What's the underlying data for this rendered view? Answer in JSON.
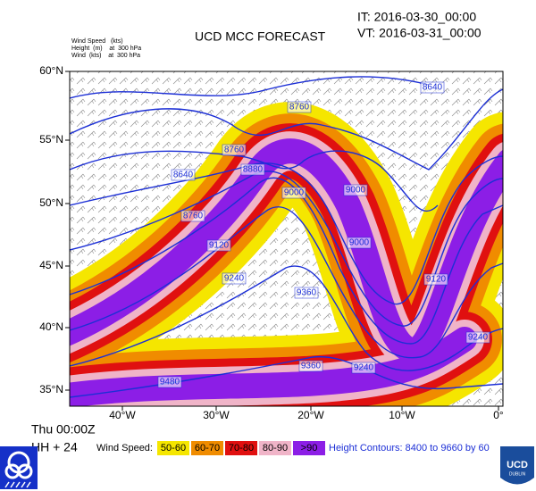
{
  "header": {
    "title": "UCD MCC FORECAST",
    "init_time": "IT: 2016-03-30_00:00",
    "valid_time": "VT: 2016-03-31_00:00",
    "legend_lines": [
      "Wind Speed   (kts)",
      "Height  (m)    at  300 hPa",
      "Wind  (kts)    at  300 hPa"
    ]
  },
  "map": {
    "lat_labels": [
      "60°N",
      "55°N",
      "50°N",
      "45°N",
      "40°N",
      "35°N"
    ],
    "lon_labels": [
      "40°W",
      "30°W",
      "20°W",
      "10°W",
      "0°"
    ],
    "contour_labels": [
      "8640",
      "8760",
      "8760",
      "8880",
      "8640",
      "8760",
      "9000",
      "9000",
      "9000",
      "9120",
      "9120",
      "9240",
      "9360",
      "9360",
      "9240",
      "9480",
      "9240"
    ]
  },
  "footer": {
    "day_time": "Thu 00:00Z",
    "lead": "HH + 24",
    "wind_speed_label": "Wind Speed:",
    "wind_bins": [
      "50-60",
      "60-70",
      "70-80",
      "80-90",
      ">90"
    ],
    "contours_note": "Height Contours: 8400 to 9660 by 60"
  },
  "logo": {
    "name": "UCD",
    "place": "DUBLIN"
  }
}
